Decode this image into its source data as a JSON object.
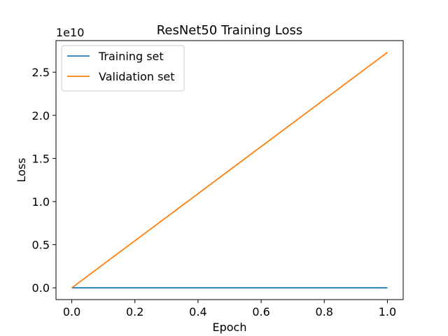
{
  "chart_data": {
    "type": "line",
    "title": "ResNet50 Training Loss",
    "xlabel": "Epoch",
    "ylabel": "Loss",
    "offset_text": "1e10",
    "xlim": [
      -0.05,
      1.05
    ],
    "ylim": [
      -0.1365,
      2.8665
    ],
    "x_ticks": [
      0.0,
      0.2,
      0.4,
      0.6,
      0.8,
      1.0
    ],
    "x_tick_labels": [
      "0.0",
      "0.2",
      "0.4",
      "0.6",
      "0.8",
      "1.0"
    ],
    "y_ticks": [
      0.0,
      0.5,
      1.0,
      1.5,
      2.0,
      2.5
    ],
    "y_tick_labels": [
      "0.0",
      "0.5",
      "1.0",
      "1.5",
      "2.0",
      "2.5"
    ],
    "grid": false,
    "legend_position": "top-left",
    "x": [
      0,
      1
    ],
    "series": [
      {
        "name": "Training set",
        "color": "#1f77b4",
        "values": [
          0.0,
          0.0
        ]
      },
      {
        "name": "Validation set",
        "color": "#ff7f0e",
        "values": [
          0.0,
          2.73
        ]
      }
    ]
  }
}
